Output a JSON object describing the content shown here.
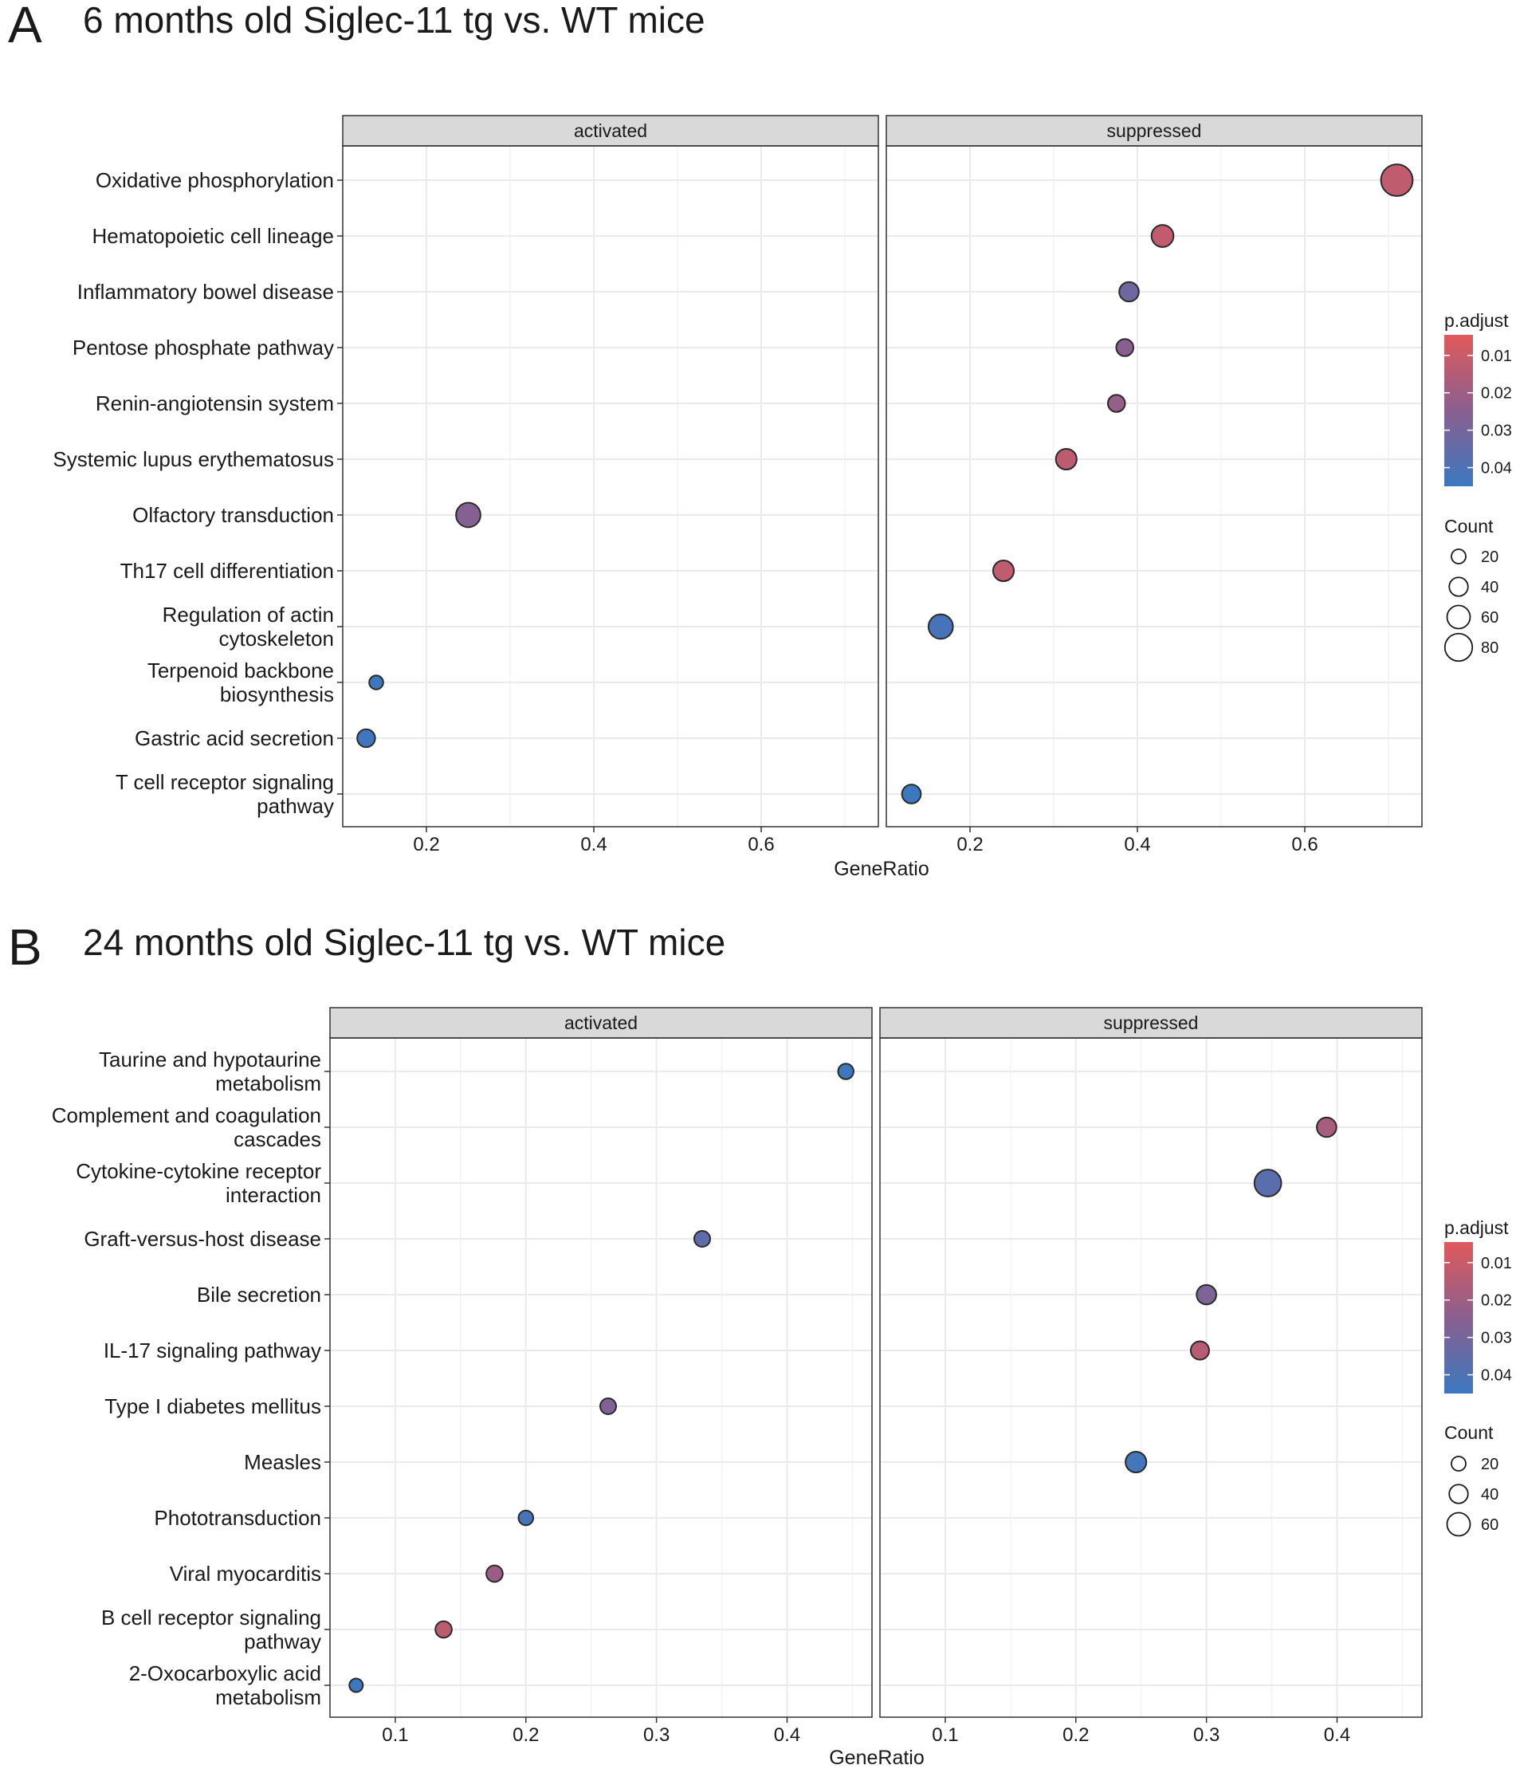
{
  "colors": {
    "low_p": "#e05a5a",
    "mid_p": "#8a5f8f",
    "high_p": "#3b78c0",
    "strip_bg": "#d9d9d9",
    "grid": "#ebebeb",
    "panel_border": "#333333",
    "point_stroke": "#2b2b2b"
  },
  "chart_data": [
    {
      "type": "scatter",
      "panel_letter": "A",
      "title": "6 months old Siglec-11 tg vs. WT mice",
      "xlabel": "GeneRatio",
      "ylabel": "",
      "facets": [
        "activated",
        "suppressed"
      ],
      "xlim": [
        0.1,
        0.74
      ],
      "xticks": [
        0.2,
        0.4,
        0.6
      ],
      "xtick_labels": [
        "0.2",
        "0.4",
        "0.6"
      ],
      "categories": [
        "Oxidative phosphorylation",
        "Hematopoietic cell lineage",
        "Inflammatory bowel disease",
        "Pentose phosphate pathway",
        "Renin-angiotensin system",
        "Systemic lupus erythematosus",
        "Olfactory transduction",
        "Th17 cell differentiation",
        "Regulation of actin cytoskeleton",
        "Terpenoid backbone biosynthesis",
        "Gastric acid secretion",
        "T cell receptor signaling pathway"
      ],
      "category_lines": [
        [
          "Oxidative phosphorylation"
        ],
        [
          "Hematopoietic cell lineage"
        ],
        [
          "Inflammatory bowel disease"
        ],
        [
          "Pentose phosphate pathway"
        ],
        [
          "Renin-angiotensin system"
        ],
        [
          "Systemic lupus erythematosus"
        ],
        [
          "Olfactory transduction"
        ],
        [
          "Th17 cell differentiation"
        ],
        [
          "Regulation of actin",
          "cytoskeleton"
        ],
        [
          "Terpenoid backbone",
          "biosynthesis"
        ],
        [
          "Gastric acid secretion"
        ],
        [
          "T cell receptor signaling",
          "pathway"
        ]
      ],
      "points": [
        {
          "facet": "suppressed",
          "term": "Oxidative phosphorylation",
          "gene_ratio": 0.71,
          "count": 85,
          "p_adjust": 0.012
        },
        {
          "facet": "suppressed",
          "term": "Hematopoietic cell lineage",
          "gene_ratio": 0.43,
          "count": 45,
          "p_adjust": 0.012
        },
        {
          "facet": "suppressed",
          "term": "Inflammatory bowel disease",
          "gene_ratio": 0.39,
          "count": 35,
          "p_adjust": 0.032
        },
        {
          "facet": "suppressed",
          "term": "Pentose phosphate pathway",
          "gene_ratio": 0.385,
          "count": 25,
          "p_adjust": 0.025
        },
        {
          "facet": "suppressed",
          "term": "Renin-angiotensin system",
          "gene_ratio": 0.375,
          "count": 25,
          "p_adjust": 0.022
        },
        {
          "facet": "suppressed",
          "term": "Systemic lupus erythematosus",
          "gene_ratio": 0.315,
          "count": 40,
          "p_adjust": 0.013
        },
        {
          "facet": "activated",
          "term": "Olfactory transduction",
          "gene_ratio": 0.25,
          "count": 55,
          "p_adjust": 0.026
        },
        {
          "facet": "suppressed",
          "term": "Th17 cell differentiation",
          "gene_ratio": 0.24,
          "count": 40,
          "p_adjust": 0.012
        },
        {
          "facet": "suppressed",
          "term": "Regulation of actin cytoskeleton",
          "gene_ratio": 0.165,
          "count": 55,
          "p_adjust": 0.042
        },
        {
          "facet": "activated",
          "term": "Terpenoid backbone biosynthesis",
          "gene_ratio": 0.14,
          "count": 12,
          "p_adjust": 0.044
        },
        {
          "facet": "activated",
          "term": "Gastric acid secretion",
          "gene_ratio": 0.128,
          "count": 28,
          "p_adjust": 0.044
        },
        {
          "facet": "suppressed",
          "term": "T cell receptor signaling pathway",
          "gene_ratio": 0.13,
          "count": 32,
          "p_adjust": 0.045
        }
      ],
      "color_legend": {
        "title": "p.adjust",
        "range": [
          0.0045,
          0.045
        ],
        "ticks": [
          0.01,
          0.02,
          0.03,
          0.04
        ],
        "tick_labels": [
          "0.01",
          "0.02",
          "0.03",
          "0.04"
        ]
      },
      "size_legend": {
        "title": "Count",
        "values": [
          20,
          40,
          60,
          80
        ],
        "labels": [
          "20",
          "40",
          "60",
          "80"
        ]
      },
      "legend_position": "right"
    },
    {
      "type": "scatter",
      "panel_letter": "B",
      "title": "24 months old Siglec-11 tg vs. WT mice",
      "xlabel": "GeneRatio",
      "ylabel": "",
      "facets": [
        "activated",
        "suppressed"
      ],
      "xlim": [
        0.05,
        0.465
      ],
      "xticks": [
        0.1,
        0.2,
        0.3,
        0.4
      ],
      "xtick_labels": [
        "0.1",
        "0.2",
        "0.3",
        "0.4"
      ],
      "categories": [
        "Taurine and hypotaurine metabolism",
        "Complement and coagulation cascades",
        "Cytokine-cytokine receptor interaction",
        "Graft-versus-host disease",
        "Bile secretion",
        "IL-17 signaling pathway",
        "Type I diabetes mellitus",
        "Measles",
        "Phototransduction",
        "Viral myocarditis",
        "B cell receptor signaling pathway",
        "2-Oxocarboxylic acid metabolism"
      ],
      "category_lines": [
        [
          "Taurine and hypotaurine",
          "metabolism"
        ],
        [
          "Complement and coagulation",
          "cascades"
        ],
        [
          "Cytokine-cytokine receptor",
          "interaction"
        ],
        [
          "Graft-versus-host disease"
        ],
        [
          "Bile secretion"
        ],
        [
          "IL-17 signaling pathway"
        ],
        [
          "Type I diabetes mellitus"
        ],
        [
          "Measles"
        ],
        [
          "Phototransduction"
        ],
        [
          "Viral myocarditis"
        ],
        [
          "B cell receptor signaling",
          "pathway"
        ],
        [
          "2-Oxocarboxylic acid",
          "metabolism"
        ]
      ],
      "points": [
        {
          "facet": "activated",
          "term": "Taurine and hypotaurine metabolism",
          "gene_ratio": 0.445,
          "count": 18,
          "p_adjust": 0.044
        },
        {
          "facet": "suppressed",
          "term": "Complement and coagulation cascades",
          "gene_ratio": 0.392,
          "count": 35,
          "p_adjust": 0.018
        },
        {
          "facet": "suppressed",
          "term": "Cytokine-cytokine receptor interaction",
          "gene_ratio": 0.347,
          "count": 65,
          "p_adjust": 0.037
        },
        {
          "facet": "activated",
          "term": "Graft-versus-host disease",
          "gene_ratio": 0.335,
          "count": 20,
          "p_adjust": 0.036
        },
        {
          "facet": "suppressed",
          "term": "Bile secretion",
          "gene_ratio": 0.3,
          "count": 35,
          "p_adjust": 0.028
        },
        {
          "facet": "suppressed",
          "term": "IL-17 signaling pathway",
          "gene_ratio": 0.295,
          "count": 30,
          "p_adjust": 0.014
        },
        {
          "facet": "activated",
          "term": "Type I diabetes mellitus",
          "gene_ratio": 0.263,
          "count": 20,
          "p_adjust": 0.027
        },
        {
          "facet": "suppressed",
          "term": "Measles",
          "gene_ratio": 0.246,
          "count": 40,
          "p_adjust": 0.043
        },
        {
          "facet": "activated",
          "term": "Phototransduction",
          "gene_ratio": 0.2,
          "count": 15,
          "p_adjust": 0.042
        },
        {
          "facet": "activated",
          "term": "Viral myocarditis",
          "gene_ratio": 0.176,
          "count": 22,
          "p_adjust": 0.021
        },
        {
          "facet": "activated",
          "term": "B cell receptor signaling pathway",
          "gene_ratio": 0.137,
          "count": 22,
          "p_adjust": 0.013
        },
        {
          "facet": "activated",
          "term": "2-Oxocarboxylic acid metabolism",
          "gene_ratio": 0.07,
          "count": 10,
          "p_adjust": 0.045
        }
      ],
      "color_legend": {
        "title": "p.adjust",
        "range": [
          0.0045,
          0.045
        ],
        "ticks": [
          0.01,
          0.02,
          0.03,
          0.04
        ],
        "tick_labels": [
          "0.01",
          "0.02",
          "0.03",
          "0.04"
        ]
      },
      "size_legend": {
        "title": "Count",
        "values": [
          20,
          40,
          60
        ],
        "labels": [
          "20",
          "40",
          "60"
        ]
      },
      "legend_position": "right"
    }
  ]
}
